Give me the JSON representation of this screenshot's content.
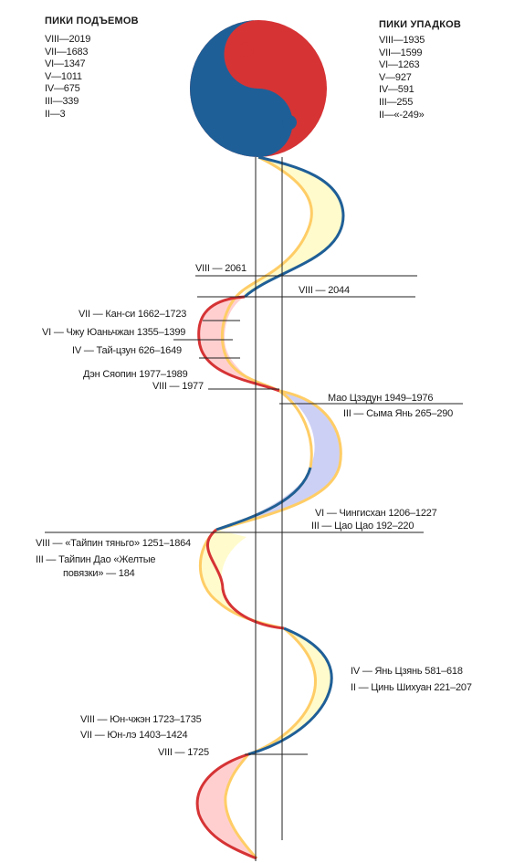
{
  "colors": {
    "yang_red": "#d63335",
    "yin_blue": "#1f5f97",
    "band_yellow": "#fffbcc",
    "band_outline_yellow": "#ffcd66",
    "band_pink": "#ffcfd0",
    "band_lavender": "#cdd0f5"
  },
  "rises": {
    "title": "ПИКИ ПОДЪЕМОВ",
    "items": [
      "VIII—2019",
      "VII—1683",
      "VI—1347",
      "V—1011",
      "IV—675",
      "III—339",
      "II—3"
    ]
  },
  "declines": {
    "title": "ПИКИ УПАДКОВ",
    "items": [
      "VIII—1935",
      "VII—1599",
      "VI—1263",
      "V—927",
      "IV—591",
      "III—255",
      "II—«-249»"
    ]
  },
  "labels": {
    "l1": "VIII — 2061",
    "l2": "VIII — 2044",
    "l3": "VII — Кан-си 1662–1723",
    "l4": "VI — Чжу Юаньчжан 1355–1399",
    "l5": "IV — Тай-цзун 626–1649",
    "l6": "Дэн Сяопин 1977–1989",
    "l7": "VIII — 1977",
    "l8": "Мао Цзэдун 1949–1976",
    "l9": "III — Сыма Янь 265–290",
    "l10": "VI — Чингисхан 1206–1227",
    "l11": "III — Цао Цао 192–220",
    "l12": "VIII — «Тайпин тяньго» 1251–1864",
    "l13a": "III — Тайпин Дао «Желтые",
    "l13b": "повязки» — 184",
    "l14": "IV — Янь Цзянь 581–618",
    "l15": "II — Цинь Шихуан 221–207",
    "l16": "VIII — Юн-чжэн 1723–1735",
    "l17": "VII — Юн-лэ 1403–1424",
    "l18": "VIII — 1725"
  }
}
